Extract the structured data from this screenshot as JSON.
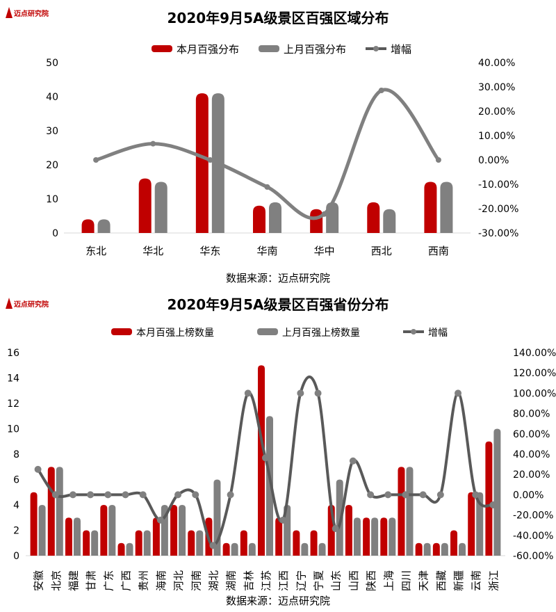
{
  "logo_text": "迈点研究院",
  "colors": {
    "current": "#c00000",
    "previous": "#808080",
    "growth": "#595959",
    "growth_marker": "#808080"
  },
  "chart_data": [
    {
      "type": "bar",
      "title": "2020年9月5A级景区百强区域分布",
      "legend": [
        "本月百强分布",
        "上月百强分布",
        "增幅"
      ],
      "legend_position": "top",
      "categories": [
        "东北",
        "华北",
        "华东",
        "华南",
        "华中",
        "西北",
        "西南"
      ],
      "series": [
        {
          "name": "本月百强分布",
          "type": "bar",
          "values": [
            4,
            16,
            41,
            8,
            7,
            9,
            15
          ]
        },
        {
          "name": "上月百强分布",
          "type": "bar",
          "values": [
            4,
            15,
            41,
            9,
            9,
            7,
            15
          ]
        },
        {
          "name": "增幅",
          "type": "line",
          "axis": "right",
          "values": [
            0,
            6.67,
            0,
            -11.11,
            -22.22,
            28.57,
            0
          ]
        }
      ],
      "ylim": [
        0,
        50
      ],
      "yticks": [
        "0",
        "10",
        "20",
        "30",
        "40",
        "50"
      ],
      "y2lim": [
        -30,
        40
      ],
      "y2ticks": [
        "-30.00%",
        "-20.00%",
        "-10.00%",
        "0.00%",
        "10.00%",
        "20.00%",
        "30.00%",
        "40.00%"
      ],
      "source": "数据来源：迈点研究院"
    },
    {
      "type": "bar",
      "title": "2020年9月5A级景区百强省份分布",
      "legend": [
        "本月百强上榜数量",
        "上月百强上榜数量",
        "增幅"
      ],
      "legend_position": "top",
      "categories": [
        "安徽",
        "北京",
        "福建",
        "甘肃",
        "广东",
        "广西",
        "贵州",
        "海南",
        "河北",
        "河南",
        "湖北",
        "湖南",
        "吉林",
        "江苏",
        "江西",
        "辽宁",
        "宁夏",
        "山东",
        "山西",
        "陕西",
        "上海",
        "四川",
        "天津",
        "西藏",
        "新疆",
        "云南",
        "浙江"
      ],
      "series": [
        {
          "name": "本月百强上榜数量",
          "type": "bar",
          "values": [
            5,
            7,
            3,
            2,
            4,
            1,
            2,
            3,
            4,
            2,
            3,
            1,
            2,
            15,
            3,
            2,
            2,
            4,
            4,
            3,
            3,
            7,
            1,
            1,
            2,
            5,
            9
          ]
        },
        {
          "name": "上月百强上榜数量",
          "type": "bar",
          "values": [
            4,
            7,
            3,
            2,
            4,
            1,
            2,
            4,
            4,
            2,
            6,
            1,
            1,
            11,
            4,
            1,
            1,
            6,
            3,
            3,
            3,
            7,
            1,
            1,
            1,
            5,
            10
          ]
        },
        {
          "name": "增幅",
          "type": "line",
          "axis": "right",
          "values": [
            25,
            0,
            0,
            0,
            0,
            0,
            0,
            -25,
            0,
            0,
            -50,
            0,
            100,
            36.36,
            -25,
            100,
            100,
            -33.33,
            33.33,
            0,
            0,
            0,
            0,
            0,
            100,
            0,
            -10
          ]
        }
      ],
      "ylim": [
        0,
        16
      ],
      "yticks": [
        "0",
        "2",
        "4",
        "6",
        "8",
        "10",
        "12",
        "14",
        "16"
      ],
      "y2lim": [
        -60,
        140
      ],
      "y2ticks": [
        "-60.00%",
        "-40.00%",
        "-20.00%",
        "0.00%",
        "20.00%",
        "40.00%",
        "60.00%",
        "80.00%",
        "100.00%",
        "120.00%",
        "140.00%"
      ],
      "source": "数据来源：迈点研究院"
    }
  ]
}
